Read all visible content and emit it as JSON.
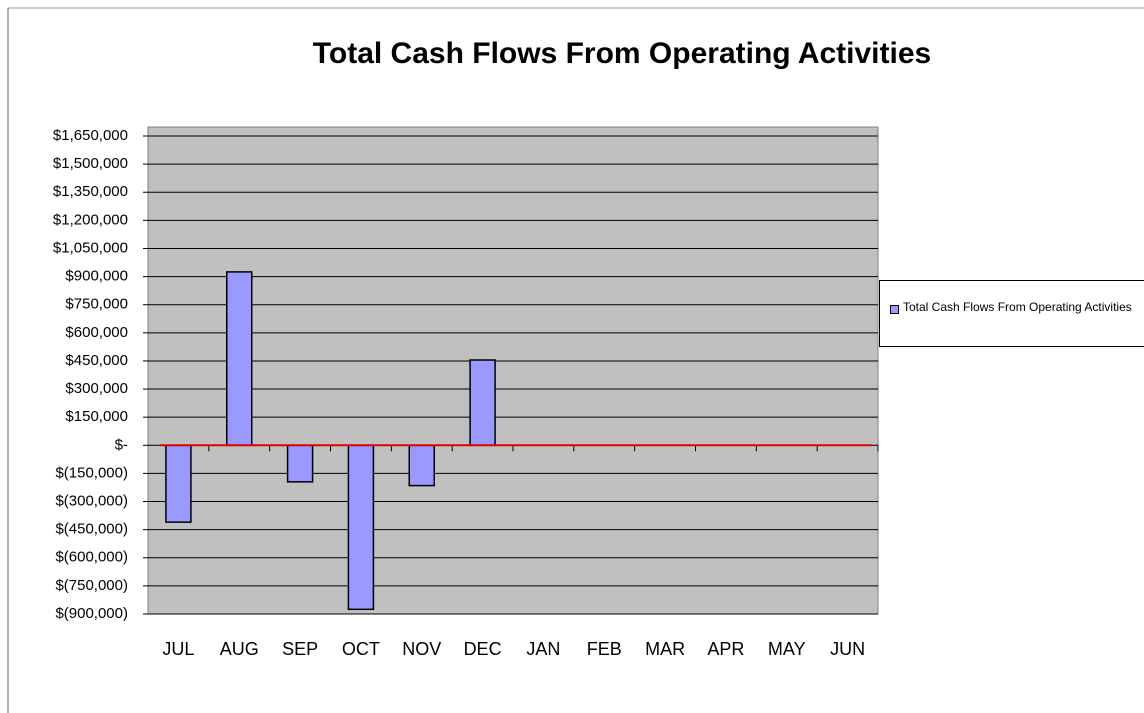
{
  "chart_data": {
    "type": "bar",
    "title": "Total Cash Flows From Operating Activities",
    "categories": [
      "JUL",
      "AUG",
      "SEP",
      "OCT",
      "NOV",
      "DEC",
      "JAN",
      "FEB",
      "MAR",
      "APR",
      "MAY",
      "JUN"
    ],
    "series": [
      {
        "name": "Total Cash Flows From Operating Activities",
        "color": "#9999ff",
        "values": [
          -410000,
          925000,
          -195000,
          -875000,
          -215000,
          455000,
          null,
          null,
          null,
          null,
          null,
          null
        ]
      }
    ],
    "ylim": [
      -900000,
      1650000
    ],
    "yticks": [
      {
        "value": 1650000,
        "label": "$1,650,000"
      },
      {
        "value": 1500000,
        "label": "$1,500,000"
      },
      {
        "value": 1350000,
        "label": "$1,350,000"
      },
      {
        "value": 1200000,
        "label": "$1,200,000"
      },
      {
        "value": 1050000,
        "label": "$1,050,000"
      },
      {
        "value": 900000,
        "label": "$900,000"
      },
      {
        "value": 750000,
        "label": "$750,000"
      },
      {
        "value": 600000,
        "label": "$600,000"
      },
      {
        "value": 450000,
        "label": "$450,000"
      },
      {
        "value": 300000,
        "label": "$300,000"
      },
      {
        "value": 150000,
        "label": "$150,000"
      },
      {
        "value": 0,
        "label": "$-"
      },
      {
        "value": -150000,
        "label": "$(150,000)"
      },
      {
        "value": -300000,
        "label": "$(300,000)"
      },
      {
        "value": -450000,
        "label": "$(450,000)"
      },
      {
        "value": -600000,
        "label": "$(600,000)"
      },
      {
        "value": -750000,
        "label": "$(750,000)"
      },
      {
        "value": -900000,
        "label": "$(900,000)"
      }
    ],
    "grid": true,
    "legend": "right"
  }
}
